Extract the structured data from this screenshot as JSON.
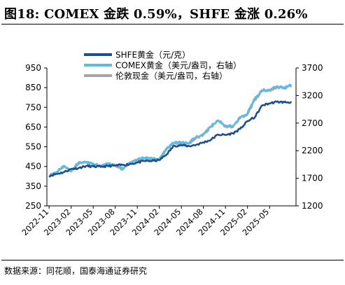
{
  "figure": {
    "title": "图18: COMEX 金跌 0.59%，SHFE 金涨 0.26%",
    "source": "数据来源：同花顺，国泰海通证券研究"
  },
  "colors": {
    "shfe": "#1d4f91",
    "comex": "#5bbde6",
    "london": "#a6a6a6",
    "axis": "#000000"
  },
  "chart_data": {
    "type": "line",
    "x_ticks": [
      "2022-11",
      "2023-02",
      "2023-05",
      "2023-08",
      "2023-11",
      "2024-02",
      "2024-05",
      "2024-08",
      "2024-11",
      "2025-02",
      "2025-05"
    ],
    "y_left": {
      "label": "",
      "ticks": [
        250,
        350,
        450,
        550,
        650,
        750,
        850,
        950
      ],
      "lim": [
        250,
        950
      ]
    },
    "y_right": {
      "label": "",
      "ticks": [
        1200,
        1700,
        2200,
        2700,
        3200,
        3700
      ],
      "lim": [
        1200,
        3700
      ]
    },
    "legend_position": "top-center",
    "grid": false,
    "series": [
      {
        "name": "SHFE黄金（元/克）",
        "axis": "left",
        "color_key": "shfe",
        "points": [
          [
            "2022-11",
            403
          ],
          [
            "2022-12",
            412
          ],
          [
            "2023-01",
            421
          ],
          [
            "2023-02",
            437
          ],
          [
            "2023-03",
            442
          ],
          [
            "2023-04",
            452
          ],
          [
            "2023-05",
            450
          ],
          [
            "2023-06",
            448
          ],
          [
            "2023-07",
            452
          ],
          [
            "2023-08",
            454
          ],
          [
            "2023-09",
            458
          ],
          [
            "2023-10",
            462
          ],
          [
            "2023-11",
            470
          ],
          [
            "2023-12",
            478
          ],
          [
            "2024-01",
            478
          ],
          [
            "2024-02",
            482
          ],
          [
            "2024-03",
            512
          ],
          [
            "2024-04",
            555
          ],
          [
            "2024-05",
            558
          ],
          [
            "2024-06",
            553
          ],
          [
            "2024-07",
            560
          ],
          [
            "2024-08",
            572
          ],
          [
            "2024-09",
            585
          ],
          [
            "2024-10",
            612
          ],
          [
            "2024-11",
            610
          ],
          [
            "2024-12",
            618
          ],
          [
            "2025-01",
            640
          ],
          [
            "2025-02",
            680
          ],
          [
            "2025-03",
            700
          ],
          [
            "2025-04",
            760
          ],
          [
            "2025-05",
            770
          ],
          [
            "2025-06",
            778
          ],
          [
            "2025-07",
            776
          ],
          [
            "2025-08",
            776
          ]
        ]
      },
      {
        "name": "COMEX黄金（美元/盎司，右轴）",
        "axis": "right",
        "color_key": "comex",
        "points": [
          [
            "2022-11",
            1750
          ],
          [
            "2022-12",
            1815
          ],
          [
            "2023-01",
            1925
          ],
          [
            "2023-02",
            1835
          ],
          [
            "2023-03",
            1980
          ],
          [
            "2023-04",
            2000
          ],
          [
            "2023-05",
            1970
          ],
          [
            "2023-06",
            1925
          ],
          [
            "2023-07",
            1965
          ],
          [
            "2023-08",
            1940
          ],
          [
            "2023-09",
            1870
          ],
          [
            "2023-10",
            1990
          ],
          [
            "2023-11",
            2040
          ],
          [
            "2023-12",
            2070
          ],
          [
            "2024-01",
            2060
          ],
          [
            "2024-02",
            2050
          ],
          [
            "2024-03",
            2240
          ],
          [
            "2024-04",
            2350
          ],
          [
            "2024-05",
            2350
          ],
          [
            "2024-06",
            2340
          ],
          [
            "2024-07",
            2450
          ],
          [
            "2024-08",
            2510
          ],
          [
            "2024-09",
            2640
          ],
          [
            "2024-10",
            2750
          ],
          [
            "2024-11",
            2660
          ],
          [
            "2024-12",
            2640
          ],
          [
            "2025-01",
            2810
          ],
          [
            "2025-02",
            2880
          ],
          [
            "2025-03",
            3150
          ],
          [
            "2025-04",
            3300
          ],
          [
            "2025-05",
            3300
          ],
          [
            "2025-06",
            3370
          ],
          [
            "2025-07",
            3350
          ],
          [
            "2025-08",
            3390
          ]
        ]
      },
      {
        "name": "伦敦现金（美元/盎司，右轴）",
        "axis": "right",
        "color_key": "london",
        "points": [
          [
            "2022-11",
            1745
          ],
          [
            "2022-12",
            1805
          ],
          [
            "2023-01",
            1915
          ],
          [
            "2023-02",
            1825
          ],
          [
            "2023-03",
            1970
          ],
          [
            "2023-04",
            1990
          ],
          [
            "2023-05",
            1960
          ],
          [
            "2023-06",
            1915
          ],
          [
            "2023-07",
            1955
          ],
          [
            "2023-08",
            1930
          ],
          [
            "2023-09",
            1860
          ],
          [
            "2023-10",
            1980
          ],
          [
            "2023-11",
            2030
          ],
          [
            "2023-12",
            2060
          ],
          [
            "2024-01",
            2040
          ],
          [
            "2024-02",
            2035
          ],
          [
            "2024-03",
            2230
          ],
          [
            "2024-04",
            2330
          ],
          [
            "2024-05",
            2330
          ],
          [
            "2024-06",
            2325
          ],
          [
            "2024-07",
            2430
          ],
          [
            "2024-08",
            2490
          ],
          [
            "2024-09",
            2630
          ],
          [
            "2024-10",
            2740
          ],
          [
            "2024-11",
            2640
          ],
          [
            "2024-12",
            2625
          ],
          [
            "2025-01",
            2790
          ],
          [
            "2025-02",
            2860
          ],
          [
            "2025-03",
            3120
          ],
          [
            "2025-04",
            3290
          ],
          [
            "2025-05",
            3290
          ],
          [
            "2025-06",
            3350
          ],
          [
            "2025-07",
            3330
          ],
          [
            "2025-08",
            3370
          ]
        ]
      }
    ]
  }
}
